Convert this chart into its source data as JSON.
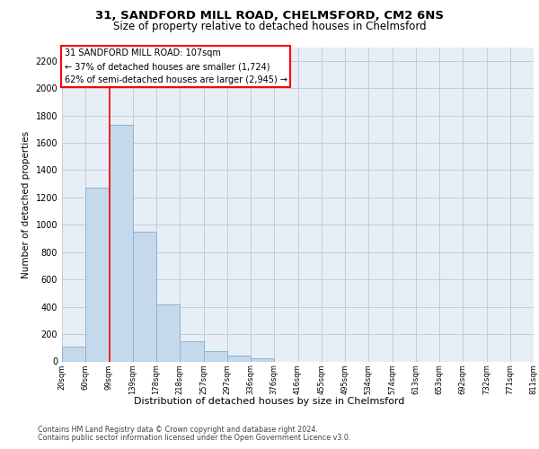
{
  "title1": "31, SANDFORD MILL ROAD, CHELMSFORD, CM2 6NS",
  "title2": "Size of property relative to detached houses in Chelmsford",
  "xlabel": "Distribution of detached houses by size in Chelmsford",
  "ylabel": "Number of detached properties",
  "footer1": "Contains HM Land Registry data © Crown copyright and database right 2024.",
  "footer2": "Contains public sector information licensed under the Open Government Licence v3.0.",
  "annotation_line1": "31 SANDFORD MILL ROAD: 107sqm",
  "annotation_line2": "← 37% of detached houses are smaller (1,724)",
  "annotation_line3": "62% of semi-detached houses are larger (2,945) →",
  "bar_values": [
    107,
    1270,
    1730,
    950,
    415,
    150,
    75,
    42,
    25,
    0,
    0,
    0,
    0,
    0,
    0,
    0,
    0,
    0,
    0,
    0
  ],
  "categories": [
    "20sqm",
    "60sqm",
    "99sqm",
    "139sqm",
    "178sqm",
    "218sqm",
    "257sqm",
    "297sqm",
    "336sqm",
    "376sqm",
    "416sqm",
    "455sqm",
    "495sqm",
    "534sqm",
    "574sqm",
    "613sqm",
    "653sqm",
    "692sqm",
    "732sqm",
    "771sqm",
    "811sqm"
  ],
  "bar_color": "#c5d9ec",
  "bar_edge_color": "#8ab4d4",
  "marker_color": "red",
  "ylim": [
    0,
    2300
  ],
  "yticks": [
    0,
    200,
    400,
    600,
    800,
    1000,
    1200,
    1400,
    1600,
    1800,
    2000,
    2200
  ],
  "plot_bg_color": "#e8eef5",
  "grid_color": "#c0cdd8",
  "title1_fontsize": 9.5,
  "title2_fontsize": 8.5,
  "ylabel_fontsize": 7.5,
  "xlabel_fontsize": 8.0,
  "ytick_fontsize": 7.0,
  "xtick_fontsize": 6.0,
  "ann_fontsize": 7.0,
  "footer_fontsize": 5.8
}
